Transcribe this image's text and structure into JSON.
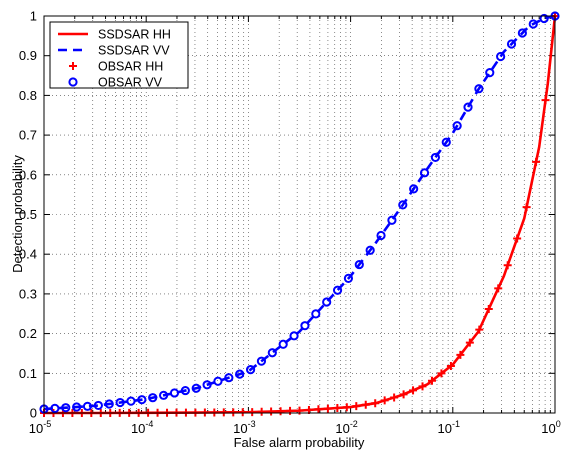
{
  "chart_data": {
    "type": "line",
    "xlabel": "False alarm probability",
    "ylabel": "Detection probability",
    "xscale": "log",
    "xlim": [
      1e-05,
      1
    ],
    "ylim": [
      0,
      1
    ],
    "grid": true,
    "legend_position": "top-left",
    "x_tick_labels": [
      {
        "base": "10",
        "exp": "-5"
      },
      {
        "base": "10",
        "exp": "-4"
      },
      {
        "base": "10",
        "exp": "-3"
      },
      {
        "base": "10",
        "exp": "-2"
      },
      {
        "base": "10",
        "exp": "-1"
      },
      {
        "base": "10",
        "exp": "0"
      }
    ],
    "y_tick_labels": [
      "0",
      "0.1",
      "0.2",
      "0.3",
      "0.4",
      "0.5",
      "0.6",
      "0.7",
      "0.8",
      "0.9",
      "1"
    ],
    "series": [
      {
        "name": "SSDSAR HH",
        "style": "solid-line",
        "color": "#ff0000",
        "x": [
          1e-05,
          3.16e-05,
          0.0001,
          0.000316,
          0.001,
          0.00316,
          0.01,
          0.0178,
          0.0316,
          0.0562,
          0.1,
          0.178,
          0.316,
          0.5,
          0.7,
          0.85,
          1.0
        ],
        "y": [
          0.0,
          0.0,
          0.0005,
          0.001,
          0.002,
          0.006,
          0.015,
          0.025,
          0.045,
          0.072,
          0.122,
          0.205,
          0.345,
          0.49,
          0.67,
          0.83,
          1.0
        ]
      },
      {
        "name": "SSDSAR VV",
        "style": "dashed-line",
        "color": "#0000ff",
        "x": [
          1e-05,
          3.16e-05,
          0.0001,
          0.000316,
          0.001,
          0.00316,
          0.01,
          0.0178,
          0.0316,
          0.0562,
          0.1,
          0.178,
          0.316,
          0.562,
          0.8,
          1.0
        ],
        "y": [
          0.01,
          0.018,
          0.035,
          0.063,
          0.105,
          0.205,
          0.345,
          0.43,
          0.52,
          0.615,
          0.705,
          0.815,
          0.91,
          0.975,
          0.995,
          1.0
        ]
      },
      {
        "name": "OBSAR HH",
        "style": "plus-markers",
        "color": "#ff0000",
        "x": [
          1e-05,
          3.16e-05,
          0.0001,
          0.000316,
          0.001,
          0.00316,
          0.01,
          0.0178,
          0.0316,
          0.0562,
          0.1,
          0.178,
          0.316,
          0.5,
          0.7,
          0.85,
          1.0
        ],
        "y": [
          0.0,
          0.0,
          0.0005,
          0.001,
          0.002,
          0.006,
          0.015,
          0.025,
          0.045,
          0.072,
          0.122,
          0.205,
          0.345,
          0.49,
          0.67,
          0.83,
          1.0
        ]
      },
      {
        "name": "OBSAR VV",
        "style": "circle-markers",
        "color": "#0000ff",
        "x": [
          1e-05,
          3.16e-05,
          0.0001,
          0.000316,
          0.001,
          0.00316,
          0.01,
          0.0178,
          0.0316,
          0.0562,
          0.1,
          0.178,
          0.316,
          0.562,
          0.8,
          1.0
        ],
        "y": [
          0.01,
          0.018,
          0.035,
          0.063,
          0.105,
          0.205,
          0.345,
          0.43,
          0.52,
          0.615,
          0.705,
          0.815,
          0.91,
          0.975,
          0.995,
          1.0
        ]
      }
    ]
  }
}
